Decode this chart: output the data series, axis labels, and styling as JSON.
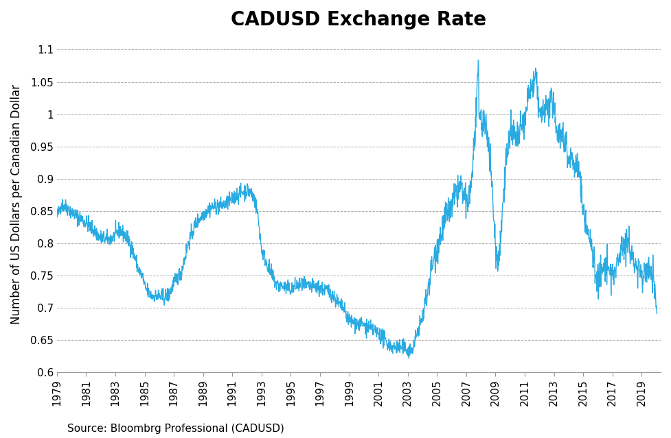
{
  "title": "CADUSD Exchange Rate",
  "ylabel": "Number of US Dollars per Canadian Dollar",
  "source": "Source: Bloombrg Professional (CADUSD)",
  "line_color": "#29ABE2",
  "background_color": "#FFFFFF",
  "ylim": [
    0.6,
    1.12
  ],
  "yticks": [
    0.6,
    0.65,
    0.7,
    0.75,
    0.8,
    0.85,
    0.9,
    0.95,
    1.0,
    1.05,
    1.1
  ],
  "title_fontsize": 20,
  "label_fontsize": 12,
  "tick_fontsize": 11,
  "source_fontsize": 11,
  "key_points": [
    [
      1979.0,
      0.84
    ],
    [
      1979.3,
      0.86
    ],
    [
      1979.7,
      0.855
    ],
    [
      1980.0,
      0.848
    ],
    [
      1980.5,
      0.84
    ],
    [
      1981.0,
      0.832
    ],
    [
      1981.5,
      0.82
    ],
    [
      1982.0,
      0.808
    ],
    [
      1982.5,
      0.805
    ],
    [
      1983.0,
      0.812
    ],
    [
      1983.3,
      0.82
    ],
    [
      1983.5,
      0.815
    ],
    [
      1983.8,
      0.808
    ],
    [
      1984.0,
      0.8
    ],
    [
      1984.3,
      0.78
    ],
    [
      1984.6,
      0.758
    ],
    [
      1984.9,
      0.745
    ],
    [
      1985.0,
      0.732
    ],
    [
      1985.3,
      0.722
    ],
    [
      1985.5,
      0.718
    ],
    [
      1986.0,
      0.718
    ],
    [
      1986.3,
      0.716
    ],
    [
      1986.5,
      0.718
    ],
    [
      1986.7,
      0.722
    ],
    [
      1987.0,
      0.738
    ],
    [
      1987.5,
      0.755
    ],
    [
      1988.0,
      0.8
    ],
    [
      1988.5,
      0.83
    ],
    [
      1989.0,
      0.845
    ],
    [
      1989.5,
      0.855
    ],
    [
      1990.0,
      0.857
    ],
    [
      1990.5,
      0.86
    ],
    [
      1991.0,
      0.868
    ],
    [
      1991.3,
      0.875
    ],
    [
      1991.6,
      0.878
    ],
    [
      1992.0,
      0.882
    ],
    [
      1992.3,
      0.878
    ],
    [
      1992.5,
      0.868
    ],
    [
      1992.7,
      0.852
    ],
    [
      1993.0,
      0.79
    ],
    [
      1993.5,
      0.76
    ],
    [
      1994.0,
      0.736
    ],
    [
      1994.5,
      0.732
    ],
    [
      1995.0,
      0.728
    ],
    [
      1995.5,
      0.735
    ],
    [
      1996.0,
      0.733
    ],
    [
      1996.5,
      0.732
    ],
    [
      1997.0,
      0.73
    ],
    [
      1997.2,
      0.728
    ],
    [
      1997.5,
      0.726
    ],
    [
      1997.8,
      0.722
    ],
    [
      1998.0,
      0.715
    ],
    [
      1998.3,
      0.705
    ],
    [
      1998.6,
      0.698
    ],
    [
      1999.0,
      0.68
    ],
    [
      1999.3,
      0.678
    ],
    [
      1999.5,
      0.675
    ],
    [
      1999.8,
      0.673
    ],
    [
      2000.0,
      0.672
    ],
    [
      2000.3,
      0.668
    ],
    [
      2000.6,
      0.665
    ],
    [
      2001.0,
      0.66
    ],
    [
      2001.3,
      0.652
    ],
    [
      2001.6,
      0.645
    ],
    [
      2002.0,
      0.638
    ],
    [
      2002.3,
      0.638
    ],
    [
      2002.6,
      0.637
    ],
    [
      2003.0,
      0.635
    ],
    [
      2003.1,
      0.633
    ],
    [
      2003.3,
      0.635
    ],
    [
      2003.5,
      0.648
    ],
    [
      2003.7,
      0.665
    ],
    [
      2004.0,
      0.682
    ],
    [
      2004.3,
      0.72
    ],
    [
      2004.6,
      0.758
    ],
    [
      2005.0,
      0.795
    ],
    [
      2005.3,
      0.815
    ],
    [
      2005.6,
      0.84
    ],
    [
      2006.0,
      0.855
    ],
    [
      2006.3,
      0.875
    ],
    [
      2006.6,
      0.888
    ],
    [
      2007.0,
      0.858
    ],
    [
      2007.2,
      0.87
    ],
    [
      2007.4,
      0.905
    ],
    [
      2007.55,
      0.96
    ],
    [
      2007.65,
      0.985
    ],
    [
      2007.73,
      1.02
    ],
    [
      2007.8,
      1.05
    ],
    [
      2007.83,
      1.08
    ],
    [
      2007.87,
      1.005
    ],
    [
      2007.92,
      1.0
    ],
    [
      2008.0,
      0.99
    ],
    [
      2008.2,
      0.985
    ],
    [
      2008.4,
      0.975
    ],
    [
      2008.5,
      0.965
    ],
    [
      2008.6,
      0.945
    ],
    [
      2008.7,
      0.91
    ],
    [
      2008.8,
      0.875
    ],
    [
      2008.9,
      0.83
    ],
    [
      2009.0,
      0.8
    ],
    [
      2009.08,
      0.778
    ],
    [
      2009.15,
      0.775
    ],
    [
      2009.2,
      0.778
    ],
    [
      2009.4,
      0.82
    ],
    [
      2009.6,
      0.9
    ],
    [
      2009.8,
      0.94
    ],
    [
      2010.0,
      0.968
    ],
    [
      2010.2,
      0.97
    ],
    [
      2010.4,
      0.96
    ],
    [
      2010.6,
      0.966
    ],
    [
      2010.8,
      0.98
    ],
    [
      2011.0,
      0.988
    ],
    [
      2011.2,
      1.022
    ],
    [
      2011.4,
      1.04
    ],
    [
      2011.6,
      1.043
    ],
    [
      2011.75,
      1.058
    ],
    [
      2011.85,
      1.038
    ],
    [
      2012.0,
      1.002
    ],
    [
      2012.2,
      0.998
    ],
    [
      2012.4,
      1.008
    ],
    [
      2012.6,
      1.01
    ],
    [
      2012.8,
      1.022
    ],
    [
      2013.0,
      1.005
    ],
    [
      2013.2,
      0.978
    ],
    [
      2013.4,
      0.97
    ],
    [
      2013.6,
      0.965
    ],
    [
      2013.8,
      0.96
    ],
    [
      2014.0,
      0.932
    ],
    [
      2014.3,
      0.928
    ],
    [
      2014.6,
      0.918
    ],
    [
      2014.8,
      0.9
    ],
    [
      2015.0,
      0.848
    ],
    [
      2015.3,
      0.82
    ],
    [
      2015.6,
      0.79
    ],
    [
      2015.8,
      0.76
    ],
    [
      2016.0,
      0.742
    ],
    [
      2016.2,
      0.75
    ],
    [
      2016.4,
      0.762
    ],
    [
      2016.6,
      0.762
    ],
    [
      2016.8,
      0.754
    ],
    [
      2017.0,
      0.754
    ],
    [
      2017.2,
      0.75
    ],
    [
      2017.4,
      0.775
    ],
    [
      2017.6,
      0.8
    ],
    [
      2017.8,
      0.798
    ],
    [
      2018.0,
      0.8
    ],
    [
      2018.2,
      0.79
    ],
    [
      2018.4,
      0.778
    ],
    [
      2018.6,
      0.762
    ],
    [
      2018.8,
      0.758
    ],
    [
      2019.0,
      0.75
    ],
    [
      2019.2,
      0.752
    ],
    [
      2019.4,
      0.76
    ],
    [
      2019.6,
      0.756
    ],
    [
      2019.8,
      0.752
    ],
    [
      2020.0,
      0.695
    ]
  ]
}
